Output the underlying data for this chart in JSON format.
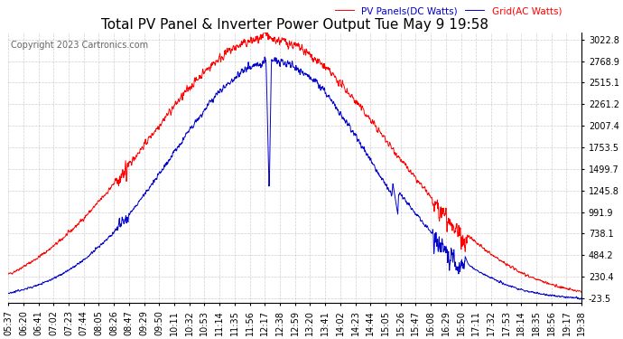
{
  "title": "Total PV Panel & Inverter Power Output Tue May 9 19:58",
  "copyright": "Copyright 2023 Cartronics.com",
  "legend_blue": "Grid(AC Watts)",
  "legend_red": "PV Panels(DC Watts)",
  "ymin": -23.5,
  "ymax": 3022.8,
  "yticks": [
    3022.8,
    2768.9,
    2515.1,
    2261.2,
    2007.4,
    1753.5,
    1499.7,
    1245.8,
    991.9,
    738.1,
    484.2,
    230.4,
    -23.5
  ],
  "xtick_labels": [
    "05:37",
    "06:20",
    "06:41",
    "07:02",
    "07:23",
    "07:44",
    "08:05",
    "08:26",
    "08:47",
    "09:29",
    "09:50",
    "10:11",
    "10:32",
    "10:53",
    "11:14",
    "11:35",
    "11:56",
    "12:17",
    "12:38",
    "12:59",
    "13:20",
    "13:41",
    "14:02",
    "14:23",
    "14:44",
    "15:05",
    "15:26",
    "15:47",
    "16:08",
    "16:29",
    "16:50",
    "17:11",
    "17:32",
    "17:53",
    "18:14",
    "18:35",
    "18:56",
    "19:17",
    "19:38"
  ],
  "background_color": "#ffffff",
  "grid_color": "#bbbbbb",
  "blue_color": "#0000cc",
  "red_color": "#ff0000",
  "title_fontsize": 11,
  "label_fontsize": 7,
  "copyright_fontsize": 7
}
